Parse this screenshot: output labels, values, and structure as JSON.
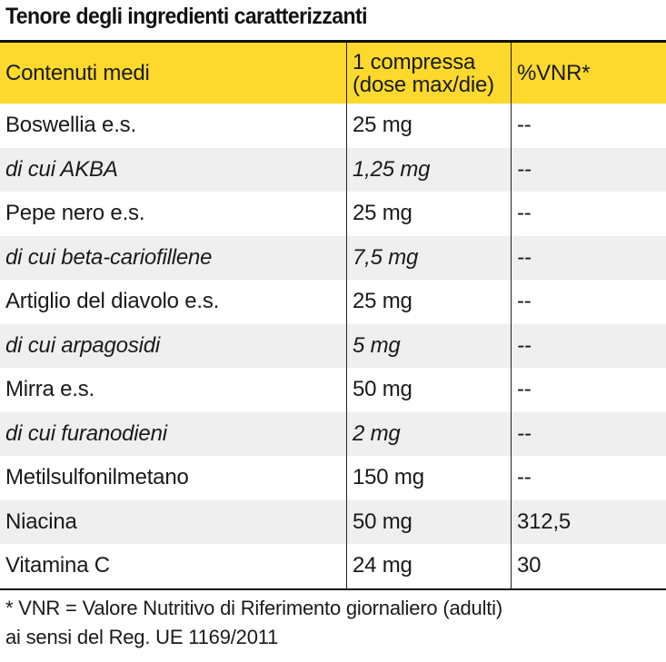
{
  "title": "Tenore degli ingredienti caratterizzanti",
  "header": {
    "col1": "Contenuti medi",
    "col2_line1": "1 compressa",
    "col2_line2": "(dose max/die)",
    "col3": "%VNR*"
  },
  "rows": [
    {
      "name": "Boswellia e.s.",
      "dose": "25 mg",
      "vnr": "--",
      "italic": false
    },
    {
      "name": "di cui AKBA",
      "dose": "1,25 mg",
      "vnr": "--",
      "italic": true
    },
    {
      "name": "Pepe nero e.s.",
      "dose": "25 mg",
      "vnr": "--",
      "italic": false
    },
    {
      "name": "di cui beta-cariofillene",
      "dose": "7,5 mg",
      "vnr": "--",
      "italic": true
    },
    {
      "name": "Artiglio del diavolo e.s.",
      "dose": "25 mg",
      "vnr": "--",
      "italic": false
    },
    {
      "name": "di cui arpagosidi",
      "dose": "5 mg",
      "vnr": "--",
      "italic": true
    },
    {
      "name": "Mirra e.s.",
      "dose": "50 mg",
      "vnr": "--",
      "italic": false
    },
    {
      "name": "di cui furanodieni",
      "dose": "2 mg",
      "vnr": "--",
      "italic": true
    },
    {
      "name": "Metilsulfonilmetano",
      "dose": "150 mg",
      "vnr": "--",
      "italic": false
    },
    {
      "name": "Niacina",
      "dose": "50 mg",
      "vnr": "312,5",
      "italic": false
    },
    {
      "name": "Vitamina C",
      "dose": "24 mg",
      "vnr": "30",
      "italic": false
    }
  ],
  "footnote": {
    "line1": "* VNR = Valore Nutritivo di Riferimento giornaliero (adulti)",
    "line2": "ai sensi del Reg. UE 1169/2011"
  },
  "colors": {
    "header_background": "#fcd92c",
    "shaded_row": "#efefef",
    "rules": "#111111"
  }
}
